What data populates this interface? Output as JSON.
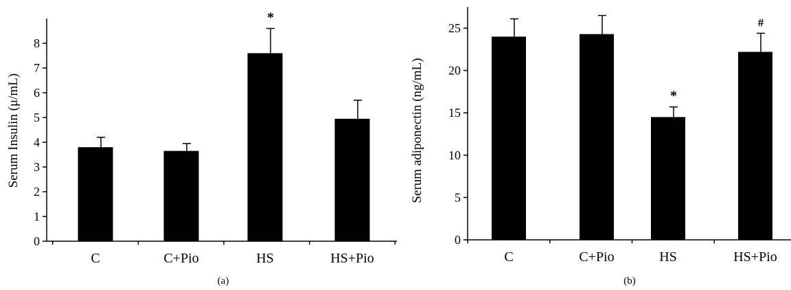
{
  "chart_data": [
    {
      "type": "bar",
      "panel_label": "(a)",
      "ylabel": "Serum Insulin (μ/mL)",
      "categories": [
        "C",
        "C+Pio",
        "HS",
        "HS+Pio"
      ],
      "values": [
        3.8,
        3.65,
        7.6,
        4.95
      ],
      "error": [
        0.4,
        0.3,
        1.0,
        0.75
      ],
      "markers": [
        "",
        "",
        "*",
        ""
      ],
      "ylim": [
        0,
        9
      ],
      "yticks": [
        0,
        1,
        2,
        3,
        4,
        5,
        6,
        7,
        8
      ],
      "grid": false,
      "bar_color": "#000000"
    },
    {
      "type": "bar",
      "panel_label": "(b)",
      "ylabel": "Serum adiponectin (ng/mL)",
      "categories": [
        "C",
        "C+Pio",
        "HS",
        "HS+Pio"
      ],
      "values": [
        24.0,
        24.3,
        14.5,
        22.2
      ],
      "error": [
        2.1,
        2.2,
        1.2,
        2.2
      ],
      "markers": [
        "",
        "",
        "*",
        "#"
      ],
      "ylim": [
        0,
        27.5
      ],
      "yticks": [
        0,
        5,
        10,
        15,
        20,
        25
      ],
      "grid": false,
      "bar_color": "#000000"
    }
  ]
}
